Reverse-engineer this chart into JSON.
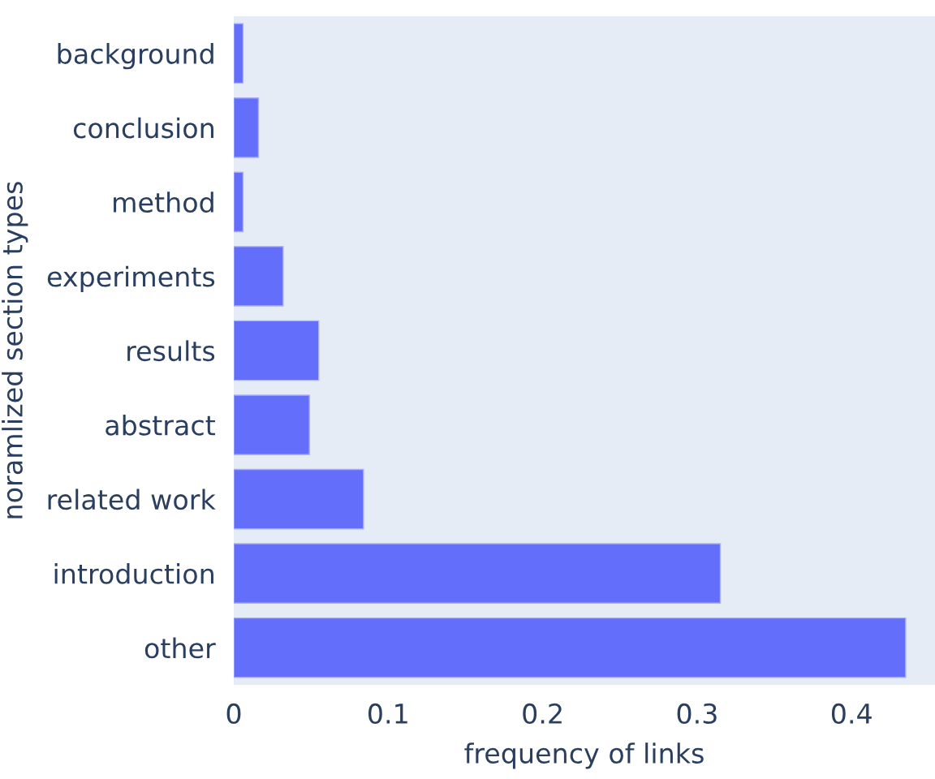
{
  "chart_data": {
    "type": "bar",
    "orientation": "horizontal",
    "xlabel": "frequency of links",
    "ylabel": "noramlized section types",
    "categories": [
      "background",
      "conclusion",
      "method",
      "experiments",
      "results",
      "abstract",
      "related work",
      "introduction",
      "other"
    ],
    "values": [
      0.006,
      0.016,
      0.006,
      0.032,
      0.055,
      0.049,
      0.084,
      0.315,
      0.435
    ],
    "color": "#636efa",
    "xlim": [
      0,
      0.454
    ],
    "xticks": [
      0,
      0.1,
      0.2,
      0.3,
      0.4
    ],
    "grid": false
  }
}
